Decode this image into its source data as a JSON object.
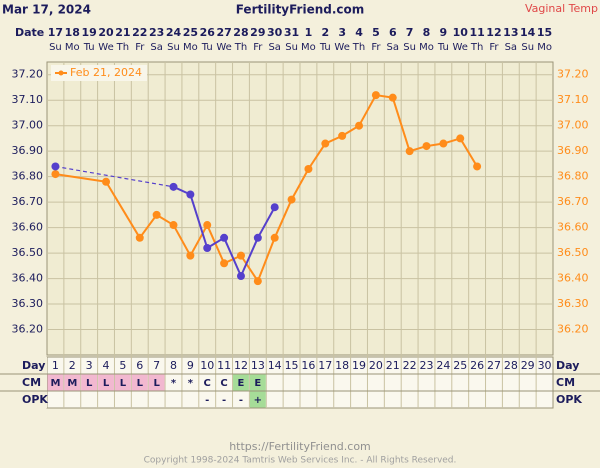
{
  "header": {
    "date": "Mar 17, 2024",
    "site": "FertilityFriend.com",
    "temp_type": "Vaginal Temp"
  },
  "chart_data": {
    "type": "line",
    "row_labels": {
      "date": "Date",
      "day": "Day",
      "cm": "CM",
      "opk": "OPK"
    },
    "dates": [
      17,
      18,
      19,
      20,
      21,
      22,
      23,
      24,
      25,
      26,
      27,
      28,
      29,
      30,
      31,
      1,
      2,
      3,
      4,
      5,
      6,
      7,
      8,
      9,
      10,
      11,
      12,
      13,
      14,
      15
    ],
    "weekdays": [
      "Su",
      "Mo",
      "Tu",
      "We",
      "Th",
      "Fr",
      "Sa",
      "Su",
      "Mo",
      "Tu",
      "We",
      "Th",
      "Fr",
      "Sa",
      "Su",
      "Mo",
      "Tu",
      "We",
      "Th",
      "Fr",
      "Sa",
      "Su",
      "Mo",
      "Tu",
      "We",
      "Th",
      "Fr",
      "Sa",
      "Su",
      "Mo"
    ],
    "days": [
      1,
      2,
      3,
      4,
      5,
      6,
      7,
      8,
      9,
      10,
      11,
      12,
      13,
      14,
      15,
      16,
      17,
      18,
      19,
      20,
      21,
      22,
      23,
      24,
      25,
      26,
      27,
      28,
      29,
      30
    ],
    "cm": [
      "M",
      "M",
      "L",
      "L",
      "L",
      "L",
      "L",
      "*",
      "*",
      "C",
      "C",
      "E",
      "E",
      null,
      null,
      null,
      null,
      null,
      null,
      null,
      null,
      null,
      null,
      null,
      null,
      null,
      null,
      null,
      null,
      null
    ],
    "opk": [
      null,
      null,
      null,
      null,
      null,
      null,
      null,
      null,
      null,
      "-",
      "-",
      "-",
      "+",
      null,
      null,
      null,
      null,
      null,
      null,
      null,
      null,
      null,
      null,
      null,
      null,
      null,
      null,
      null,
      null,
      null
    ],
    "cm_colors": {
      "M": "#f2b8d0",
      "L": "#f2b8d0",
      "E": "#a6dc98"
    },
    "opk_colors": {
      "+": "#a6dc98"
    },
    "series": [
      {
        "name": "Feb 21, 2024",
        "color": "#ff8c1a",
        "gap_style": "solid",
        "x": [
          1,
          4,
          6,
          7,
          8,
          9,
          10,
          11,
          12,
          13,
          14,
          15,
          16,
          17,
          18,
          19,
          20,
          21,
          22,
          23,
          24,
          25,
          26
        ],
        "values": [
          36.81,
          36.78,
          36.56,
          36.65,
          36.61,
          36.49,
          36.61,
          36.46,
          36.49,
          36.39,
          36.56,
          36.71,
          36.83,
          36.93,
          36.96,
          37.0,
          37.12,
          37.11,
          36.9,
          36.92,
          36.93,
          36.95,
          36.84
        ]
      },
      {
        "color": "#5540cc",
        "gap_style": "dashed",
        "x": [
          1,
          8,
          9,
          10,
          11,
          12,
          13,
          14
        ],
        "values": [
          36.84,
          36.76,
          36.73,
          36.52,
          36.56,
          36.41,
          36.56,
          36.68
        ]
      }
    ],
    "xlim": [
      0.5,
      30.5
    ],
    "ylim": [
      36.1,
      37.25
    ],
    "yticks": [
      {
        "value": 36.2,
        "label": "36.20"
      },
      {
        "value": 36.3,
        "label": "36.30"
      },
      {
        "value": 36.4,
        "label": "36.40"
      },
      {
        "value": 36.5,
        "label": "36.50"
      },
      {
        "value": 36.6,
        "label": "36.60"
      },
      {
        "value": 36.7,
        "label": "36.70"
      },
      {
        "value": 36.8,
        "label": "36.80"
      },
      {
        "value": 36.9,
        "label": "36.90"
      },
      {
        "value": 37.0,
        "label": "37.00"
      },
      {
        "value": 37.1,
        "label": "37.10"
      },
      {
        "value": 37.2,
        "label": "37.20"
      }
    ],
    "grid": true,
    "legend": "top-left"
  },
  "footer": {
    "url": "https://FertilityFriend.com",
    "copyright": "Copyright 1998-2024 Tamtris Web Services Inc. - All Rights Reserved."
  }
}
